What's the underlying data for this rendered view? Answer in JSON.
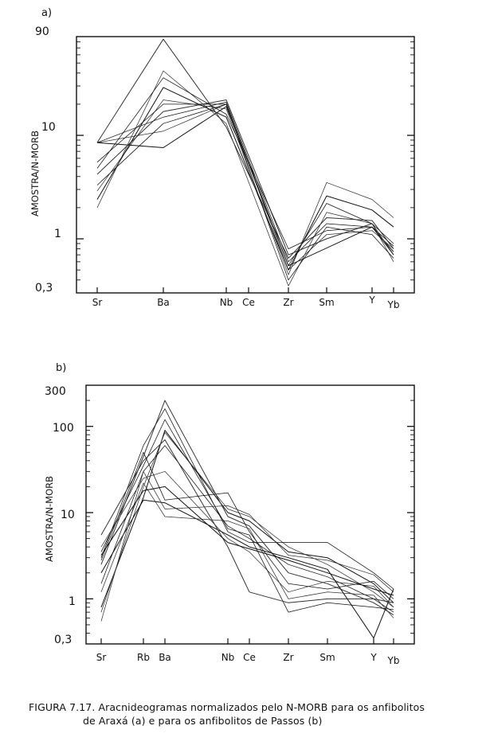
{
  "chart_data": [
    {
      "type": "line",
      "panel_label": "a)",
      "ylabel": "AMOSTRA/N-MORB",
      "yscale": "log",
      "ylim": [
        0.3,
        90
      ],
      "ytick_labels": [
        "90",
        "10",
        "1",
        "0,3"
      ],
      "categories": [
        "Sr",
        "Ba",
        "Nb",
        "Ce",
        "Zr",
        "Sm",
        "Y",
        "Yb"
      ],
      "x_tick_labels": [
        "Sr",
        "Ba",
        "Nb",
        "Ce",
        "Zr",
        "Sm",
        "Y",
        "Yb"
      ],
      "series": [
        {
          "Sr": 8.5,
          "Ba": 7.6,
          "Nb": 19,
          "Zr": 0.55,
          "Y": 1.3,
          "Yb": 0.75
        },
        {
          "Sr": 8.5,
          "Ba": 11,
          "Nb": 20,
          "Zr": 0.5,
          "Sm": 1.1,
          "Y": 1.2,
          "Yb": 0.8
        },
        {
          "Sr": 8.5,
          "Ba": 15,
          "Nb": 21,
          "Zr": 0.6,
          "Sm": 1.4,
          "Y": 1.3,
          "Yb": 0.85
        },
        {
          "Sr": 4.2,
          "Ba": 17,
          "Nb": 22,
          "Zr": 0.7,
          "Sm": 1.0,
          "Y": 1.4,
          "Yb": 0.7
        },
        {
          "Sr": 3.3,
          "Ba": 13,
          "Nb": 20,
          "Zr": 0.55,
          "Sm": 2.2,
          "Y": 1.4,
          "Yb": 0.9
        },
        {
          "Sr": 2.9,
          "Ba": 22,
          "Nb": 18,
          "Zr": 0.45,
          "Sm": 3.5,
          "Y": 2.4,
          "Yb": 1.6
        },
        {
          "Sr": 2.4,
          "Ba": 29,
          "Nb": 15,
          "Zr": 0.5,
          "Sm": 2.6,
          "Y": 1.9,
          "Yb": 1.3
        },
        {
          "Sr": 2.0,
          "Ba": 42,
          "Nb": 13,
          "Zr": 0.35,
          "Sm": 1.8,
          "Y": 1.4,
          "Yb": 0.6
        },
        {
          "Sr": 4.8,
          "Ba": 36,
          "Nb": 16,
          "Zr": 0.8,
          "Sm": 1.2,
          "Y": 1.3,
          "Yb": 0.7
        },
        {
          "Sr": 8.5,
          "Ba": 85,
          "Nb": 12,
          "Zr": 0.65,
          "Sm": 1.6,
          "Y": 1.5,
          "Yb": 0.8
        },
        {
          "Sr": 5.5,
          "Ba": 20,
          "Nb": 20,
          "Zr": 0.4,
          "Sm": 1.3,
          "Y": 1.1,
          "Yb": 0.65
        }
      ]
    },
    {
      "type": "line",
      "panel_label": "b)",
      "ylabel": "AMOSTRA/N-MORB",
      "yscale": "log",
      "ylim": [
        0.3,
        300
      ],
      "ytick_labels": [
        "300",
        "100",
        "10",
        "1",
        "0,3"
      ],
      "categories": [
        "Sr",
        "Rb",
        "Ba",
        "Nb",
        "Ce",
        "Zr",
        "Sm",
        "Y",
        "Yb"
      ],
      "x_tick_labels": [
        "Sr",
        "Rb",
        "Ba",
        "Nb",
        "Ce",
        "Zr",
        "Sm",
        "Y",
        "Yb"
      ],
      "series": [
        {
          "Sr": 0.8,
          "Rb": 15,
          "Ba": 90,
          "Nb": 10,
          "Ce": 8,
          "Zr": 3.5,
          "Sm": 3.0,
          "Y": 1.5,
          "Yb": 0.9
        },
        {
          "Sr": 0.7,
          "Rb": 20,
          "Ba": 85,
          "Nb": 11,
          "Ce": 9,
          "Zr": 4.0,
          "Sm": 2.5,
          "Y": 1.2,
          "Yb": 0.8
        },
        {
          "Sr": 1.5,
          "Rb": 30,
          "Ba": 60,
          "Nb": 7,
          "Ce": 5,
          "Zr": 2.5,
          "Sm": 1.8,
          "Y": 1.0,
          "Yb": 0.7
        },
        {
          "Sr": 2.5,
          "Rb": 45,
          "Ba": 200,
          "Nb": 9,
          "Ce": 7,
          "Zr": 2.0,
          "Sm": 1.5,
          "Y": 0.9,
          "Yb": 0.65
        },
        {
          "Sr": 3.0,
          "Rb": 60,
          "Ba": 160,
          "Nb": 6,
          "Ce": 4.5,
          "Zr": 4.5,
          "Sm": 4.5,
          "Y": 2.0,
          "Yb": 1.3
        },
        {
          "Sr": 4.0,
          "Rb": 25,
          "Ba": 30,
          "Nb": 5,
          "Ce": 3.5,
          "Zr": 1.2,
          "Sm": 1.6,
          "Y": 1.4,
          "Yb": 0.8
        },
        {
          "Sr": 2.0,
          "Rb": 14,
          "Ba": 13,
          "Nb": 5.5,
          "Ce": 4,
          "Zr": 3.0,
          "Sm": 2.2,
          "Y": 0.35,
          "Yb": 1.3
        },
        {
          "Sr": 1.2,
          "Rb": 22,
          "Ba": 9,
          "Nb": 8,
          "Ce": 6.5,
          "Zr": 1.0,
          "Sm": 1.2,
          "Y": 1.1,
          "Yb": 0.6
        },
        {
          "Sr": 3.5,
          "Rb": 35,
          "Ba": 120,
          "Nb": 6.5,
          "Ce": 5.5,
          "Zr": 0.7,
          "Sm": 0.9,
          "Y": 0.8,
          "Yb": 0.75
        },
        {
          "Sr": 5.5,
          "Rb": 40,
          "Ba": 70,
          "Nb": 4,
          "Ce": 1.2,
          "Zr": 0.9,
          "Sm": 1.0,
          "Y": 1.0,
          "Yb": 0.9
        },
        {
          "Sr": 2.8,
          "Rb": 50,
          "Ba": 14,
          "Nb": 17,
          "Ce": 6,
          "Zr": 1.5,
          "Sm": 1.3,
          "Y": 1.6,
          "Yb": 1.0
        },
        {
          "Sr": 0.55,
          "Rb": 30,
          "Ba": 11,
          "Nb": 12,
          "Ce": 9.5,
          "Zr": 3.2,
          "Sm": 2.8,
          "Y": 1.9,
          "Yb": 1.2
        },
        {
          "Sr": 3.2,
          "Rb": 18,
          "Ba": 20,
          "Nb": 4.5,
          "Ce": 3.8,
          "Zr": 2.8,
          "Sm": 2.0,
          "Y": 1.3,
          "Yb": 1.1
        }
      ]
    }
  ],
  "caption": {
    "line1": "FIGURA 7.17. Aracnideogramas normalizados pelo N-MORB para os anfibolitos",
    "line2": "de Araxá (a) e para os anfibolitos de Passos (b)"
  }
}
